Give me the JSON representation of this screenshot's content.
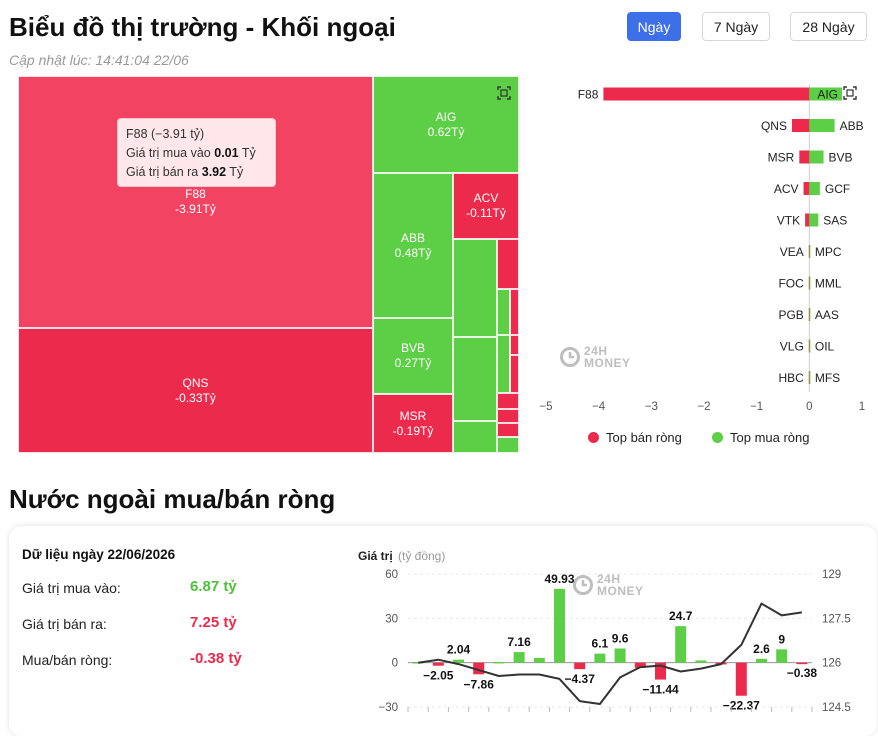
{
  "header": {
    "title": "Biểu đồ thị trường - Khối ngoại",
    "updated": "Cập nhật lúc: 14:41:04 22/06",
    "ranges": [
      "Ngày",
      "7 Ngày",
      "28 Ngày"
    ],
    "active_range": "Ngày"
  },
  "treemap": {
    "tiles": [
      {
        "ticker": "F88",
        "value": "-3.91Tỷ",
        "color": "#f24462"
      },
      {
        "ticker": "QNS",
        "value": "-0.33Tỷ",
        "color": "#ec2a4c"
      },
      {
        "ticker": "AIG",
        "value": "0.62Tỷ",
        "color": "#5ccf46"
      },
      {
        "ticker": "ABB",
        "value": "0.48Tỷ",
        "color": "#5ccf46"
      },
      {
        "ticker": "BVB",
        "value": "0.27Tỷ",
        "color": "#5ccf46"
      },
      {
        "ticker": "MSR",
        "value": "-0.19Tỷ",
        "color": "#ec2a4c"
      },
      {
        "ticker": "ACV",
        "value": "-0.11Tỷ",
        "color": "#ec2a4c"
      }
    ],
    "tooltip": {
      "title": "F88 (−3.91 tỷ)",
      "buy_label": "Giá trị mua vào",
      "buy_value": "0.01",
      "sell_label": "Giá trị bán ra",
      "sell_value": "3.92",
      "unit": "Tỷ"
    }
  },
  "watermark": {
    "line1": "24H",
    "line2": "MONEY"
  },
  "chart_data": [
    {
      "type": "bar",
      "orientation": "horizontal",
      "xlim": [
        -5,
        1
      ],
      "x_ticks": [
        "−5",
        "−4",
        "−3",
        "−2",
        "−1",
        "0",
        "1"
      ],
      "sell_series": {
        "name": "Top bán ròng",
        "color": "#ec2a4c",
        "categories": [
          "F88",
          "QNS",
          "MSR",
          "ACV",
          "VTK",
          "VEA",
          "FOC",
          "PGB",
          "VLG",
          "HBC"
        ],
        "values": [
          -3.91,
          -0.33,
          -0.19,
          -0.11,
          -0.08,
          -0.01,
          -0.01,
          -0.01,
          -0.01,
          -0.01
        ]
      },
      "buy_series": {
        "name": "Top mua ròng",
        "color": "#5ccf46",
        "categories": [
          "AIG",
          "ABB",
          "BVB",
          "GCF",
          "SAS",
          "MPC",
          "MML",
          "AAS",
          "OIL",
          "MFS"
        ],
        "values": [
          0.62,
          0.48,
          0.27,
          0.2,
          0.17,
          0.01,
          0.01,
          0.01,
          0.01,
          0.01
        ]
      },
      "legend_position": "bottom"
    },
    {
      "type": "bar",
      "y_title": "Giá trị",
      "y_unit": "(tỷ đồng)",
      "ylim": [
        -30,
        60
      ],
      "y_ticks": [
        "60",
        "30",
        "0",
        "−30"
      ],
      "y2lim": [
        124.5,
        129
      ],
      "y2_ticks": [
        "129",
        "127.5",
        "126",
        "124.5"
      ],
      "values": [
        0.4,
        -2.05,
        2.04,
        -7.86,
        0.5,
        7.16,
        3.2,
        49.93,
        -4.37,
        6.1,
        9.6,
        -3.5,
        -11.44,
        24.7,
        1.5,
        -1.2,
        -22.37,
        2.6,
        9,
        -0.38
      ],
      "data_labels": [
        "",
        "−2.05",
        "2.04",
        "−7.86",
        "",
        "7.16",
        "",
        "49.93",
        "−4.37",
        "6.1",
        "9.6",
        "",
        "−11.44",
        "24.7",
        "",
        "",
        "−22.37",
        "2.6",
        "9",
        "−0.38"
      ],
      "line": {
        "values": [
          126.0,
          126.1,
          125.95,
          125.75,
          125.55,
          125.6,
          125.6,
          125.45,
          124.7,
          124.6,
          125.5,
          125.85,
          125.9,
          125.7,
          125.8,
          125.95,
          126.6,
          128.0,
          127.6,
          127.7
        ]
      },
      "colors": {
        "positive": "#5ccf46",
        "negative": "#ec2a4c",
        "line": "#333333"
      }
    }
  ],
  "summary": {
    "date_label": "Dữ liệu ngày 22/06/2026",
    "buy_label": "Giá trị mua vào:",
    "buy_value": "6.87 tỷ",
    "sell_label": "Giá trị bán ra:",
    "sell_value": "7.25 tỷ",
    "net_label": "Mua/bán ròng:",
    "net_value": "-0.38 tỷ"
  },
  "section_title": "Nước ngoài mua/bán ròng"
}
